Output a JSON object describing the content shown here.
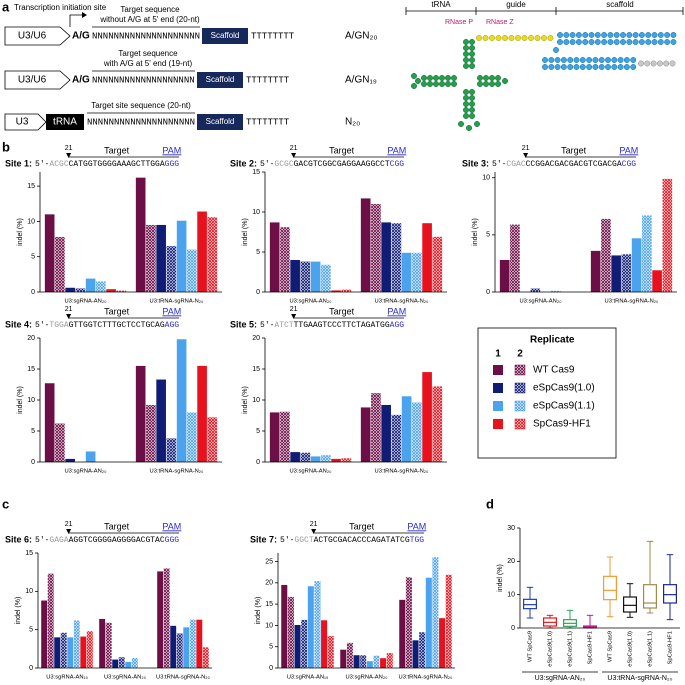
{
  "panel_a": {
    "label": "a",
    "tss": "Transcription initiation site",
    "constructs": [
      {
        "promoter": "U3/U6",
        "start": "A/G",
        "guide": "NNNNNNNNNNNNNNNNNNNN",
        "caption": [
          "Target sequence",
          "without A/G at 5' end (20-nt)"
        ],
        "scaffold": "Scaffold",
        "terminator": "TTTTTTTT",
        "name": "A/GN₂₀"
      },
      {
        "promoter": "U3/U6",
        "start": "A/G",
        "guide": "NNNNNNNNNNNNNNNNNNN",
        "caption": [
          "Target sequence",
          "with A/G at 5' end (19-nt)"
        ],
        "scaffold": "Scaffold",
        "terminator": "TTTTTTTT",
        "name": "A/GN₁₉"
      },
      {
        "promoter": "U3",
        "trna": "tRNA",
        "guide": "NNNNNNNNNNNNNNNNNNNN",
        "caption": [
          "Target site sequence (20-nt)"
        ],
        "scaffold": "Scaffold",
        "terminator": "TTTTTTTT",
        "name": "N₂₀"
      }
    ],
    "rna": {
      "trna": "tRNA",
      "guide": "guide",
      "scaffold": "scaffold",
      "rnase_p": "RNase P",
      "rnase_z": "RNase Z"
    }
  },
  "panel_labels": [
    "b",
    "c",
    "d"
  ],
  "legend": {
    "title": "Replicate",
    "replicates": [
      "1",
      "2"
    ],
    "items": [
      {
        "name": "WT Cas9",
        "color": "#6d0f47"
      },
      {
        "name": "eSpCas9(1.0)",
        "color": "#111d75"
      },
      {
        "name": "eSpCas9(1.1)",
        "color": "#4ba3ee"
      },
      {
        "name": "SpCas9-HF1",
        "color": "#e8121e"
      }
    ]
  },
  "chart_data": [
    {
      "type": "bar",
      "site": {
        "label": "Site 1:",
        "prefix": "5'-",
        "flank": "ACGC",
        "target": "CATGGTGGGGAAAGCTTGGA",
        "pam": "GGG",
        "position": "21",
        "target_label": "Target",
        "pam_label": "PAM"
      },
      "y_label": "indel (%)",
      "categories": [
        "U3:sgRNA-AN₂₀",
        "U3:tRNA-sgRNA-N₂₀"
      ],
      "ylim": [
        0,
        17
      ],
      "yticks": [
        0,
        5,
        10,
        15
      ],
      "series": [
        {
          "color": "#6d0f47",
          "pattern": "solid",
          "values": [
            11,
            16.2
          ]
        },
        {
          "color": "#6d0f47",
          "pattern": "hatched",
          "values": [
            7.8,
            9.5
          ]
        },
        {
          "color": "#111d75",
          "pattern": "solid",
          "values": [
            0.6,
            9.5
          ]
        },
        {
          "color": "#111d75",
          "pattern": "hatched",
          "values": [
            0.5,
            6.5
          ]
        },
        {
          "color": "#4ba3ee",
          "pattern": "solid",
          "values": [
            1.9,
            10.1
          ]
        },
        {
          "color": "#4ba3ee",
          "pattern": "hatched",
          "values": [
            1.5,
            6
          ]
        },
        {
          "color": "#e8121e",
          "pattern": "solid",
          "values": [
            0.4,
            11.4
          ]
        },
        {
          "color": "#e8121e",
          "pattern": "hatched",
          "values": [
            0.2,
            10.6
          ]
        }
      ]
    },
    {
      "type": "bar",
      "site": {
        "label": "Site 2:",
        "prefix": "5'-",
        "flank": "GCGC",
        "target": "GACGTCGGCGAGGAAGGCCT",
        "pam": "CGG",
        "position": "21",
        "target_label": "Target",
        "pam_label": "PAM"
      },
      "y_label": "indel (%)",
      "categories": [
        "U3:sgRNA-AN₂₀",
        "U3:tRNA-sgRNA-N₂₀"
      ],
      "ylim": [
        0,
        15
      ],
      "yticks": [
        0,
        5,
        10,
        15
      ],
      "series": [
        {
          "color": "#6d0f47",
          "pattern": "solid",
          "values": [
            8.7,
            11.7
          ]
        },
        {
          "color": "#6d0f47",
          "pattern": "hatched",
          "values": [
            8.1,
            11
          ]
        },
        {
          "color": "#111d75",
          "pattern": "solid",
          "values": [
            4,
            8.7
          ]
        },
        {
          "color": "#111d75",
          "pattern": "hatched",
          "values": [
            3.8,
            8.6
          ]
        },
        {
          "color": "#4ba3ee",
          "pattern": "solid",
          "values": [
            3.8,
            4.9
          ]
        },
        {
          "color": "#4ba3ee",
          "pattern": "hatched",
          "values": [
            3.4,
            4.9
          ]
        },
        {
          "color": "#e8121e",
          "pattern": "solid",
          "values": [
            0.2,
            8.6
          ]
        },
        {
          "color": "#e8121e",
          "pattern": "hatched",
          "values": [
            0.3,
            6.9
          ]
        }
      ]
    },
    {
      "type": "bar",
      "site": {
        "label": "Site 3:",
        "prefix": "5'-",
        "flank": "CGAC",
        "target": "CCGGACGACGACGTCGACGA",
        "pam": "CGG",
        "position": "21",
        "target_label": "Target",
        "pam_label": "PAM"
      },
      "y_label": "indel (%)",
      "categories": [
        "U3:sgRNA-AN₂₀",
        "U3:tRNA-sgRNA-N₂₀"
      ],
      "ylim": [
        0,
        10.5
      ],
      "yticks": [
        0,
        5,
        10
      ],
      "series": [
        {
          "color": "#6d0f47",
          "pattern": "solid",
          "values": [
            2.8,
            3.6
          ]
        },
        {
          "color": "#6d0f47",
          "pattern": "hatched",
          "values": [
            5.9,
            6.4
          ]
        },
        {
          "color": "#111d75",
          "pattern": "solid",
          "values": [
            0,
            3.2
          ]
        },
        {
          "color": "#111d75",
          "pattern": "hatched",
          "values": [
            0.3,
            3.3
          ]
        },
        {
          "color": "#4ba3ee",
          "pattern": "solid",
          "values": [
            0,
            4.7
          ]
        },
        {
          "color": "#4ba3ee",
          "pattern": "hatched",
          "values": [
            0.1,
            6.7
          ]
        },
        {
          "color": "#e8121e",
          "pattern": "solid",
          "values": [
            0,
            1.9
          ]
        },
        {
          "color": "#e8121e",
          "pattern": "hatched",
          "values": [
            0,
            9.9
          ]
        }
      ]
    },
    {
      "type": "bar",
      "site": {
        "label": "Site 4:",
        "prefix": "5'-",
        "flank": "TGGA",
        "target": "GTTGGTCTTTGCTCCTGCAG",
        "pam": "AGG",
        "position": "21",
        "target_label": "Target",
        "pam_label": "PAM"
      },
      "y_label": "indel (%)",
      "categories": [
        "U3:sgRNA-AN₂₀",
        "U3:tRNA-sgRNA-N₂₀"
      ],
      "ylim": [
        0,
        20
      ],
      "yticks": [
        0,
        5,
        10,
        15,
        20
      ],
      "series": [
        {
          "color": "#6d0f47",
          "pattern": "solid",
          "values": [
            12.7,
            15.5
          ]
        },
        {
          "color": "#6d0f47",
          "pattern": "hatched",
          "values": [
            6.2,
            9.2
          ]
        },
        {
          "color": "#111d75",
          "pattern": "solid",
          "values": [
            0.5,
            13.3
          ]
        },
        {
          "color": "#111d75",
          "pattern": "hatched",
          "values": [
            0,
            3.8
          ]
        },
        {
          "color": "#4ba3ee",
          "pattern": "solid",
          "values": [
            1.7,
            19.8
          ]
        },
        {
          "color": "#4ba3ee",
          "pattern": "hatched",
          "values": [
            0,
            8
          ]
        },
        {
          "color": "#e8121e",
          "pattern": "solid",
          "values": [
            0,
            15.5
          ]
        },
        {
          "color": "#e8121e",
          "pattern": "hatched",
          "values": [
            0,
            7.2
          ]
        }
      ]
    },
    {
      "type": "bar",
      "site": {
        "label": "Site 5:",
        "prefix": "5'-",
        "flank": "ATCT",
        "target": "TTGAAGTCCCTTCTAGATGG",
        "pam": "AGG",
        "position": "21",
        "target_label": "Target",
        "pam_label": "PAM"
      },
      "y_label": "indel (%)",
      "categories": [
        "U3:sgRNA-AN₂₀",
        "U3:tRNA-sgRNA-N₂₀"
      ],
      "ylim": [
        0,
        20
      ],
      "yticks": [
        0,
        5,
        10,
        15,
        20
      ],
      "series": [
        {
          "color": "#6d0f47",
          "pattern": "solid",
          "values": [
            8,
            8.8
          ]
        },
        {
          "color": "#6d0f47",
          "pattern": "hatched",
          "values": [
            8.1,
            11.1
          ]
        },
        {
          "color": "#111d75",
          "pattern": "solid",
          "values": [
            1.6,
            9.2
          ]
        },
        {
          "color": "#111d75",
          "pattern": "hatched",
          "values": [
            1.5,
            7.6
          ]
        },
        {
          "color": "#4ba3ee",
          "pattern": "solid",
          "values": [
            0.9,
            10.6
          ]
        },
        {
          "color": "#4ba3ee",
          "pattern": "hatched",
          "values": [
            1.1,
            9.6
          ]
        },
        {
          "color": "#e8121e",
          "pattern": "solid",
          "values": [
            0.5,
            14.5
          ]
        },
        {
          "color": "#e8121e",
          "pattern": "hatched",
          "values": [
            0.6,
            12.2
          ]
        }
      ]
    },
    {
      "type": "bar",
      "site": {
        "label": "Site 6:",
        "prefix": "5'-",
        "flank": "GAGA",
        "target": "AGGTCGGGGAGGGGACGTAC",
        "pam": "GGG",
        "position": "21",
        "target_label": "Target",
        "pam_label": "PAM"
      },
      "y_label": "indel (%)",
      "categories": [
        "U3:sgRNA-AN₁₉",
        "U3:sgRNA-AN₂₀",
        "U3:tRNA-sgRNA-N₂₀"
      ],
      "ylim": [
        0,
        15
      ],
      "yticks": [
        0,
        5,
        10,
        15
      ],
      "series": [
        {
          "color": "#6d0f47",
          "pattern": "solid",
          "values": [
            8.8,
            6.4,
            12.6
          ]
        },
        {
          "color": "#6d0f47",
          "pattern": "hatched",
          "values": [
            12.3,
            5.9,
            13
          ]
        },
        {
          "color": "#111d75",
          "pattern": "solid",
          "values": [
            4,
            1.1,
            5.5
          ]
        },
        {
          "color": "#111d75",
          "pattern": "hatched",
          "values": [
            4.6,
            1.4,
            4.5
          ]
        },
        {
          "color": "#4ba3ee",
          "pattern": "solid",
          "values": [
            4,
            0.8,
            5.3
          ]
        },
        {
          "color": "#4ba3ee",
          "pattern": "hatched",
          "values": [
            6.2,
            1.3,
            6.3
          ]
        },
        {
          "color": "#e8121e",
          "pattern": "solid",
          "values": [
            4.1,
            0,
            6.3
          ]
        },
        {
          "color": "#e8121e",
          "pattern": "hatched",
          "values": [
            4.8,
            0,
            2.7
          ]
        }
      ]
    },
    {
      "type": "bar",
      "site": {
        "label": "Site 7:",
        "prefix": "5'-",
        "flank": "GGCT",
        "target": "ACTGCGACACCCAGATATCG",
        "pam": "TGG",
        "position": "21",
        "target_label": "Target",
        "pam_label": "PAM"
      },
      "y_label": "indel (%)",
      "categories": [
        "U3:sgRNA-AN₁₉",
        "U3:sgRNA-AN₂₀",
        "U3:tRNA-sgRNA-N₂₀"
      ],
      "ylim": [
        0,
        27
      ],
      "yticks": [
        0,
        5,
        10,
        15,
        20,
        25
      ],
      "series": [
        {
          "color": "#6d0f47",
          "pattern": "solid",
          "values": [
            19.5,
            4.3,
            16
          ]
        },
        {
          "color": "#6d0f47",
          "pattern": "hatched",
          "values": [
            16.7,
            5.9,
            21.3
          ]
        },
        {
          "color": "#111d75",
          "pattern": "solid",
          "values": [
            10.1,
            3,
            6.5
          ]
        },
        {
          "color": "#111d75",
          "pattern": "hatched",
          "values": [
            11.3,
            3,
            8.4
          ]
        },
        {
          "color": "#4ba3ee",
          "pattern": "solid",
          "values": [
            19.2,
            1.6,
            21.2
          ]
        },
        {
          "color": "#4ba3ee",
          "pattern": "hatched",
          "values": [
            20.4,
            2.9,
            26
          ]
        },
        {
          "color": "#e8121e",
          "pattern": "solid",
          "values": [
            11.2,
            2.3,
            11.7
          ]
        },
        {
          "color": "#e8121e",
          "pattern": "hatched",
          "values": [
            7.5,
            3.5,
            21.9
          ]
        }
      ]
    },
    {
      "type": "box",
      "y_label": "indel (%)",
      "categories": [
        "WT SpCas9",
        "eSpCas9(1.0)",
        "eSpCas9(1.1)",
        "SpCas9-HF1",
        "WT SpCas9",
        "eSpCas9(1.0)",
        "eSpCas9(1.1)",
        "SpCas9-HF1"
      ],
      "groups": [
        "U3:sgRNA-AN₂₀",
        "U3:tRNA-sgRNA-N₂₀"
      ],
      "colors": [
        "#1f3ea6",
        "#e31a1c",
        "#2ea55a",
        "#c21d8f",
        "#f29b30",
        "#111111",
        "#a38a4c",
        "#1a2a8a"
      ],
      "min": [
        3,
        0,
        0,
        0,
        3.4,
        3.2,
        4.5,
        2.5
      ],
      "q1": [
        5.8,
        0.6,
        0.5,
        0.1,
        8.5,
        4.8,
        6,
        7.5
      ],
      "median": [
        7,
        1.7,
        1.4,
        0.3,
        11.3,
        6.8,
        7.5,
        10
      ],
      "q3": [
        8.6,
        3,
        2.5,
        0.6,
        15.5,
        9.3,
        13,
        13
      ],
      "max": [
        12.2,
        3.8,
        5.3,
        3.8,
        21.3,
        13.3,
        26,
        22
      ],
      "ylim": [
        0,
        30
      ],
      "yticks": [
        0,
        10,
        20,
        30
      ]
    }
  ]
}
